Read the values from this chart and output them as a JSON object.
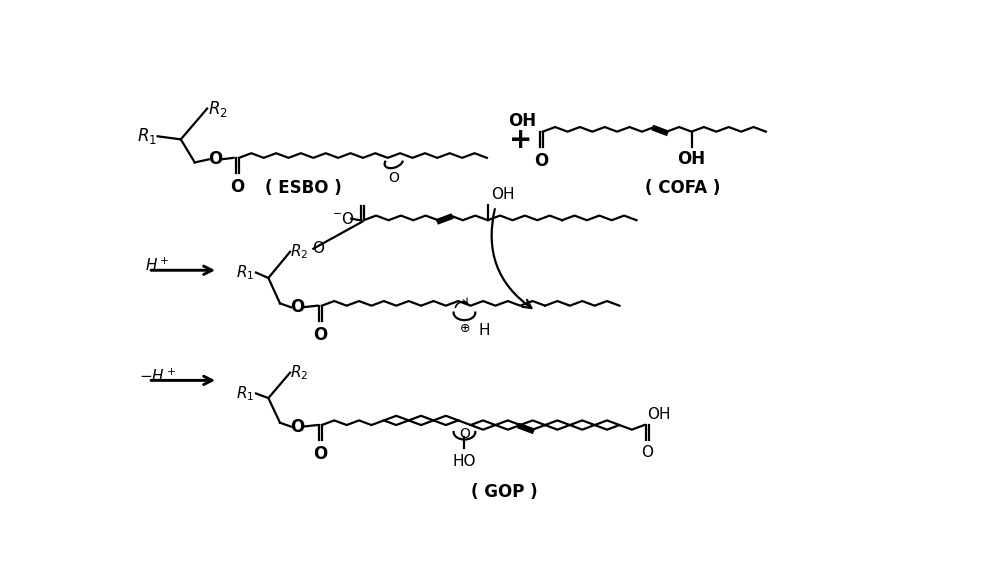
{
  "background_color": "#ffffff",
  "text_color": "#000000",
  "esbo_label": "( ESBO )",
  "cofa_label": "( COFA )",
  "gop_label": "( GOP )",
  "plus_sign": "+",
  "fig_width": 10.0,
  "fig_height": 5.71,
  "dpi": 100
}
